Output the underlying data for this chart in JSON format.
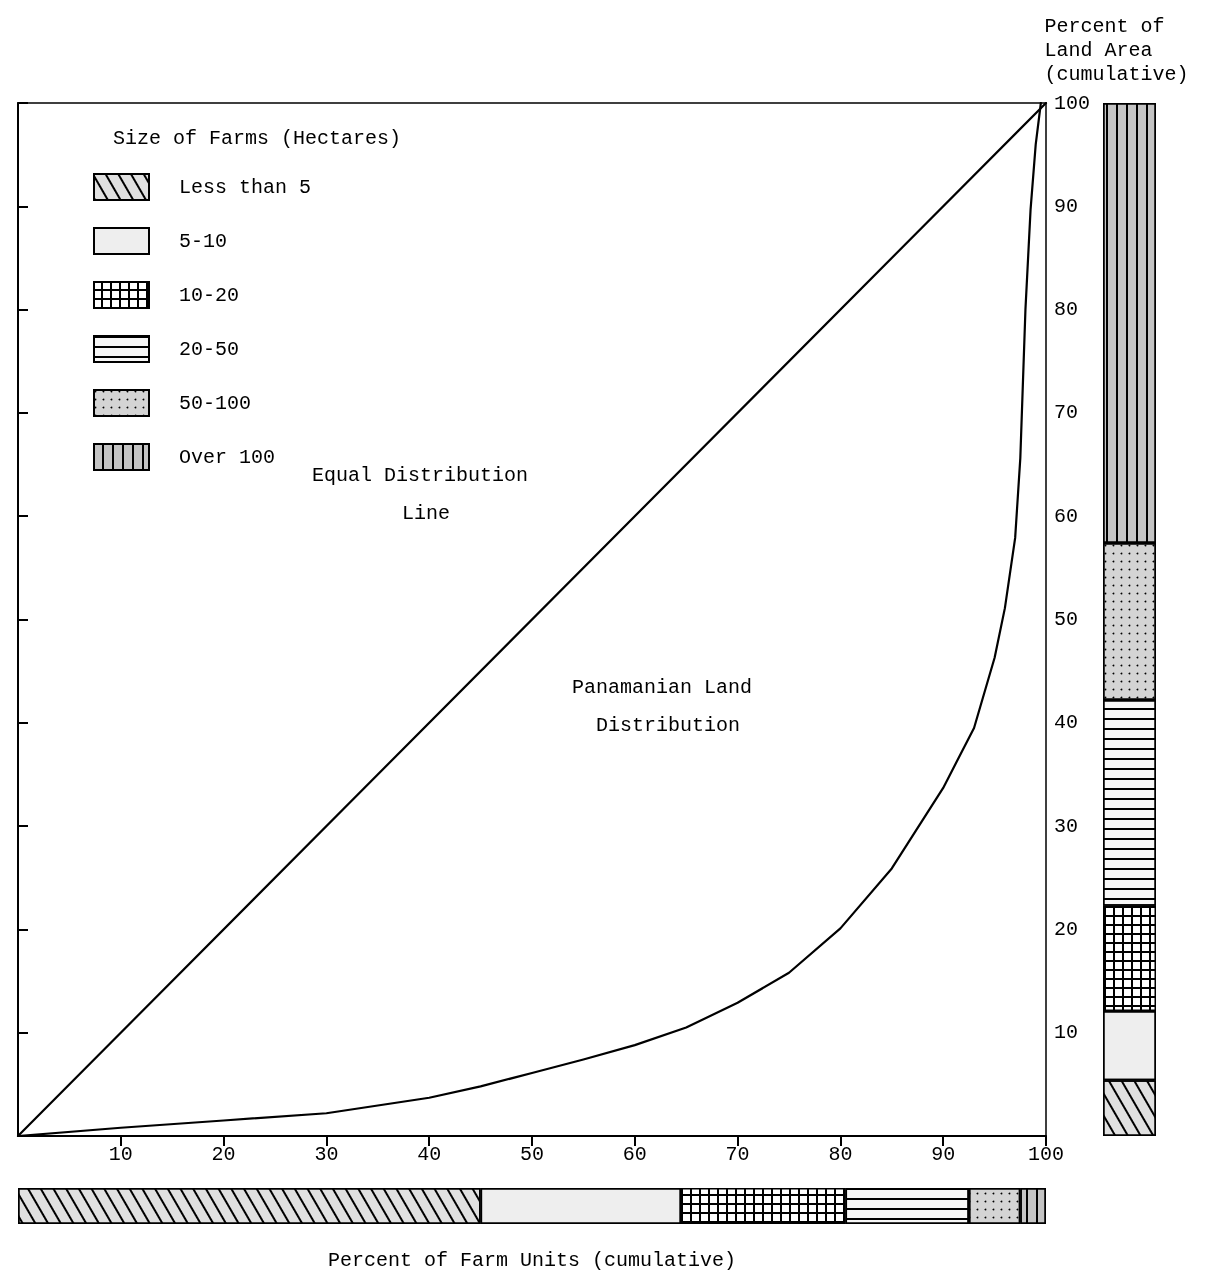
{
  "chart_data": [
    {
      "type": "line",
      "marker": "none",
      "line_style": "solid",
      "xlim": [
        0,
        100
      ],
      "ylim": [
        0,
        100
      ],
      "xticks": [
        10,
        20,
        30,
        40,
        50,
        60,
        70,
        80,
        90,
        100
      ],
      "yticks": [
        10,
        20,
        30,
        40,
        50,
        60,
        70,
        80,
        90,
        100
      ],
      "series": [
        {
          "color": "#000000",
          "x": [
            0,
            100
          ],
          "values": [
            0,
            100
          ]
        },
        {
          "color": "#000000",
          "x": [
            0,
            10,
            20,
            30,
            40,
            45,
            50,
            55,
            60,
            65,
            70,
            75,
            80,
            85,
            90,
            93,
            95,
            96,
            97,
            97.5,
            98,
            98.5,
            99,
            99.5
          ],
          "values": [
            0,
            0.8,
            1.5,
            2.2,
            3.7,
            4.8,
            6.1,
            7.4,
            8.8,
            10.5,
            12.9,
            15.8,
            20.1,
            25.9,
            33.7,
            39.5,
            46.3,
            51.1,
            57.9,
            65.6,
            80,
            89.7,
            96,
            100
          ]
        }
      ],
      "annotations": [
        "Equal Distribution Line",
        "Panamanian Land Distribution"
      ]
    },
    {
      "type": "bar",
      "stacked": true,
      "categories": [
        null
      ],
      "ylim": [
        0,
        100
      ],
      "yticks": [
        10,
        20,
        30,
        40,
        50,
        60,
        70,
        80,
        90,
        100
      ],
      "tick_labels": false,
      "ylabel": "Percent of Land Area (cumulative)",
      "legend": "top left",
      "legend_title": "Size of Farms (Hectares)",
      "series": [
        {
          "name": "Less than 5",
          "color": "#e0e0e0",
          "values": [
            5.4
          ]
        },
        {
          "name": "5-10",
          "color": "#eeeeee",
          "values": [
            6.7
          ]
        },
        {
          "name": "10-20",
          "color": "#000000",
          "values": [
            10.2
          ]
        },
        {
          "name": "20-50",
          "color": "#f7f7f7",
          "values": [
            19.9
          ]
        },
        {
          "name": "50-100",
          "color": "#d4d4d4",
          "values": [
            15.2
          ]
        },
        {
          "name": "Over 100",
          "color": "#c4c4c4",
          "values": [
            42.6
          ]
        }
      ]
    },
    {
      "type": "bar",
      "stacked": true,
      "orientation": "horizontal",
      "categories": [
        null
      ],
      "xlim": [
        0,
        100
      ],
      "xticks": [
        10,
        20,
        30,
        40,
        50,
        60,
        70,
        80,
        90,
        100
      ],
      "tick_labels": false,
      "xlabel": "Percent of Farm Units (cumulative)",
      "series": [
        {
          "color": "#e0e0e0",
          "values": [
            45
          ]
        },
        {
          "color": "#eeeeee",
          "values": [
            19.5
          ]
        },
        {
          "color": "#000000",
          "values": [
            16
          ]
        },
        {
          "color": "#f7f7f7",
          "values": [
            12
          ]
        },
        {
          "color": "#d4d4d4",
          "values": [
            5
          ]
        },
        {
          "color": "#c4c4c4",
          "values": [
            2.5
          ]
        }
      ]
    }
  ]
}
